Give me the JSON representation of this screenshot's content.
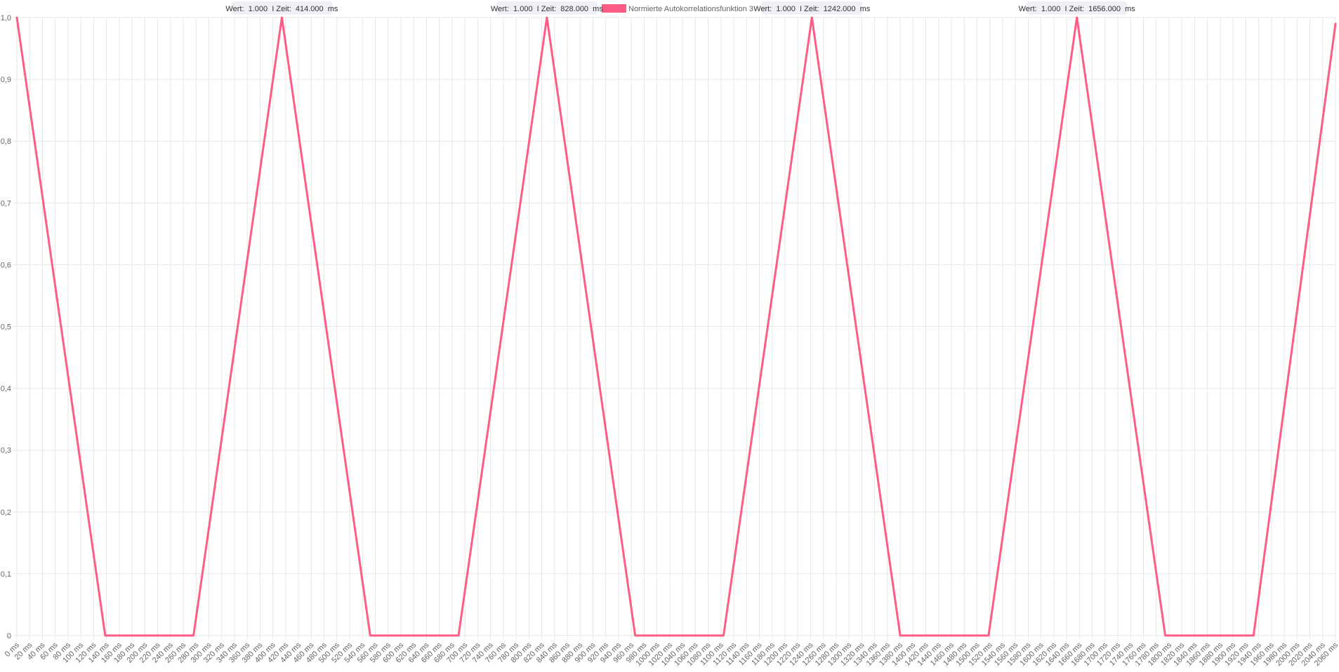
{
  "chart_data": {
    "type": "line",
    "title": "",
    "xlabel": "",
    "ylabel": "",
    "legend": {
      "placement": "top-center",
      "label": "Normierte Autokorrelationsfunktion 3",
      "color": "#ff5c85"
    },
    "grid": true,
    "x_unit": "ms",
    "x_tick_step": 20,
    "xlim": [
      0,
      2060
    ],
    "ylim": [
      0,
      1
    ],
    "y_ticks": [
      0,
      0.1,
      0.2,
      0.3,
      0.4,
      0.5,
      0.6,
      0.7,
      0.8,
      0.9,
      1.0
    ],
    "y_tick_labels": [
      "0",
      "0,1",
      "0,2",
      "0,3",
      "0,4",
      "0,5",
      "0,6",
      "0,7",
      "0,8",
      "0,9",
      "1,0"
    ],
    "x_tick_labels": [
      "0 ms",
      "20 ms",
      "40 ms",
      "60 ms",
      "80 ms",
      "100 ms",
      "120 ms",
      "140 ms",
      "160 ms",
      "180 ms",
      "200 ms",
      "220 ms",
      "240 ms",
      "260 ms",
      "280 ms",
      "300 ms",
      "320 ms",
      "340 ms",
      "360 ms",
      "380 ms",
      "400 ms",
      "420 ms",
      "440 ms",
      "460 ms",
      "480 ms",
      "500 ms",
      "520 ms",
      "540 ms",
      "560 ms",
      "580 ms",
      "600 ms",
      "620 ms",
      "640 ms",
      "660 ms",
      "680 ms",
      "700 ms",
      "720 ms",
      "740 ms",
      "760 ms",
      "780 ms",
      "800 ms",
      "820 ms",
      "840 ms",
      "860 ms",
      "880 ms",
      "900 ms",
      "920 ms",
      "940 ms",
      "960 ms",
      "980 ms",
      "1000 ms",
      "1020 ms",
      "1040 ms",
      "1060 ms",
      "1080 ms",
      "1100 ms",
      "1120 ms",
      "1140 ms",
      "1160 ms",
      "1180 ms",
      "1200 ms",
      "1220 ms",
      "1240 ms",
      "1260 ms",
      "1280 ms",
      "1300 ms",
      "1320 ms",
      "1340 ms",
      "1360 ms",
      "1380 ms",
      "1400 ms",
      "1420 ms",
      "1440 ms",
      "1460 ms",
      "1480 ms",
      "1500 ms",
      "1520 ms",
      "1540 ms",
      "1560 ms",
      "1580 ms",
      "1600 ms",
      "1620 ms",
      "1640 ms",
      "1660 ms",
      "1680 ms",
      "1700 ms",
      "1720 ms",
      "1740 ms",
      "1760 ms",
      "1780 ms",
      "1800 ms",
      "1820 ms",
      "1840 ms",
      "1860 ms",
      "1880 ms",
      "1900 ms",
      "1920 ms",
      "1940 ms",
      "1960 ms",
      "1980 ms",
      "2000 ms",
      "2020 ms",
      "2040 ms",
      "2060 ms"
    ],
    "series": [
      {
        "name": "Normierte Autokorrelationsfunktion 3",
        "color": "#ff5c85",
        "points": [
          {
            "x": 0,
            "y": 1.0
          },
          {
            "x": 138,
            "y": 0
          },
          {
            "x": 276,
            "y": 0
          },
          {
            "x": 414,
            "y": 1.0
          },
          {
            "x": 552,
            "y": 0
          },
          {
            "x": 690,
            "y": 0
          },
          {
            "x": 828,
            "y": 1.0
          },
          {
            "x": 966,
            "y": 0
          },
          {
            "x": 1104,
            "y": 0
          },
          {
            "x": 1242,
            "y": 1.0
          },
          {
            "x": 1380,
            "y": 0
          },
          {
            "x": 1518,
            "y": 0
          },
          {
            "x": 1656,
            "y": 1.0
          },
          {
            "x": 1794,
            "y": 0
          },
          {
            "x": 1932,
            "y": 0
          },
          {
            "x": 2060,
            "y": 0.99
          }
        ]
      }
    ],
    "annotations": [
      {
        "x": 414,
        "y": 1.0,
        "text": "Wert:  1.000  I Zeit:  414.000  ms"
      },
      {
        "x": 828,
        "y": 1.0,
        "text": "Wert:  1.000  I Zeit:  828.000  ms"
      },
      {
        "x": 1242,
        "y": 1.0,
        "text": "Wert:  1.000  I Zeit:  1242.000  ms"
      },
      {
        "x": 1656,
        "y": 1.0,
        "text": "Wert:  1.000  I Zeit:  1656.000  ms"
      }
    ]
  }
}
